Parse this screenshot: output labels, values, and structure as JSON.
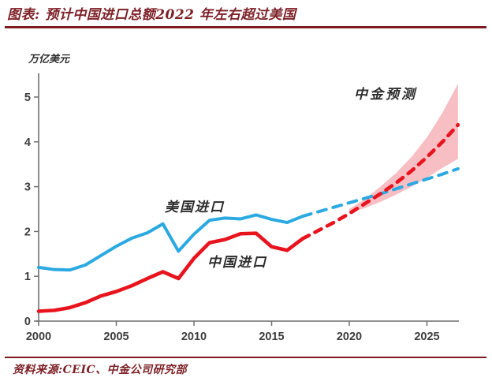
{
  "chart_data": {
    "type": "line",
    "title": "图表: 预计中国进口总额2022 年左右超过美国",
    "ylabel_unit": "万亿美元",
    "annotation": "中金预测",
    "source": "资料来源:CEIC、中金公司研究部",
    "x_ticks": [
      2000,
      2005,
      2010,
      2015,
      2020,
      2025
    ],
    "y_ticks": [
      0,
      1,
      2,
      3,
      4,
      5
    ],
    "xlim": [
      2000,
      2027
    ],
    "ylim": [
      0,
      5.5
    ],
    "grid": false,
    "legend_position": "inline-labels",
    "colors": {
      "us_line": "#2BA9E1",
      "china_line": "#E8131D",
      "band_fill": "#F6B3B8",
      "axis": "#6F6F6F",
      "accent_dark_red": "#7D2127",
      "label_text": "#2D2D2D"
    },
    "series": [
      {
        "key": "us_actual",
        "name": "美国进口",
        "segment": "actual",
        "style": "solid",
        "color_ref": "us_line",
        "x": [
          2000,
          2001,
          2002,
          2003,
          2004,
          2005,
          2006,
          2007,
          2008,
          2009,
          2010,
          2011,
          2012,
          2013,
          2014,
          2015,
          2016,
          2017
        ],
        "values": [
          1.2,
          1.15,
          1.14,
          1.25,
          1.46,
          1.67,
          1.85,
          1.97,
          2.17,
          1.56,
          1.94,
          2.25,
          2.3,
          2.28,
          2.37,
          2.27,
          2.2,
          2.34
        ]
      },
      {
        "key": "us_forecast",
        "name": "美国进口",
        "segment": "forecast",
        "style": "dashed",
        "color_ref": "us_line",
        "x": [
          2017,
          2018,
          2019,
          2020,
          2021,
          2022,
          2023,
          2024,
          2025,
          2026,
          2027
        ],
        "values": [
          2.34,
          2.44,
          2.54,
          2.64,
          2.74,
          2.84,
          2.95,
          3.06,
          3.17,
          3.28,
          3.4
        ]
      },
      {
        "key": "china_actual",
        "name": "中国进口",
        "segment": "actual",
        "style": "solid",
        "color_ref": "china_line",
        "x": [
          2000,
          2001,
          2002,
          2003,
          2004,
          2005,
          2006,
          2007,
          2008,
          2009,
          2010,
          2011,
          2012,
          2013,
          2014,
          2015,
          2016,
          2017
        ],
        "values": [
          0.22,
          0.24,
          0.3,
          0.41,
          0.56,
          0.66,
          0.79,
          0.95,
          1.1,
          0.95,
          1.4,
          1.75,
          1.82,
          1.95,
          1.96,
          1.66,
          1.58,
          1.84
        ]
      },
      {
        "key": "china_forecast",
        "name": "中国进口",
        "segment": "forecast",
        "style": "dashed",
        "color_ref": "china_line",
        "x": [
          2017,
          2018,
          2019,
          2020,
          2021,
          2022,
          2023,
          2024,
          2025,
          2026,
          2027
        ],
        "values": [
          1.84,
          2.02,
          2.2,
          2.4,
          2.62,
          2.84,
          3.08,
          3.35,
          3.66,
          4.0,
          4.38
        ]
      }
    ],
    "band": {
      "label": "中金预测",
      "x": [
        2020,
        2021,
        2022,
        2023,
        2024,
        2025,
        2026,
        2027
      ],
      "upper": [
        2.5,
        2.72,
        3.0,
        3.3,
        3.66,
        4.1,
        4.65,
        5.3
      ],
      "lower": [
        2.42,
        2.52,
        2.66,
        2.82,
        3.0,
        3.2,
        3.42,
        3.62
      ]
    }
  }
}
